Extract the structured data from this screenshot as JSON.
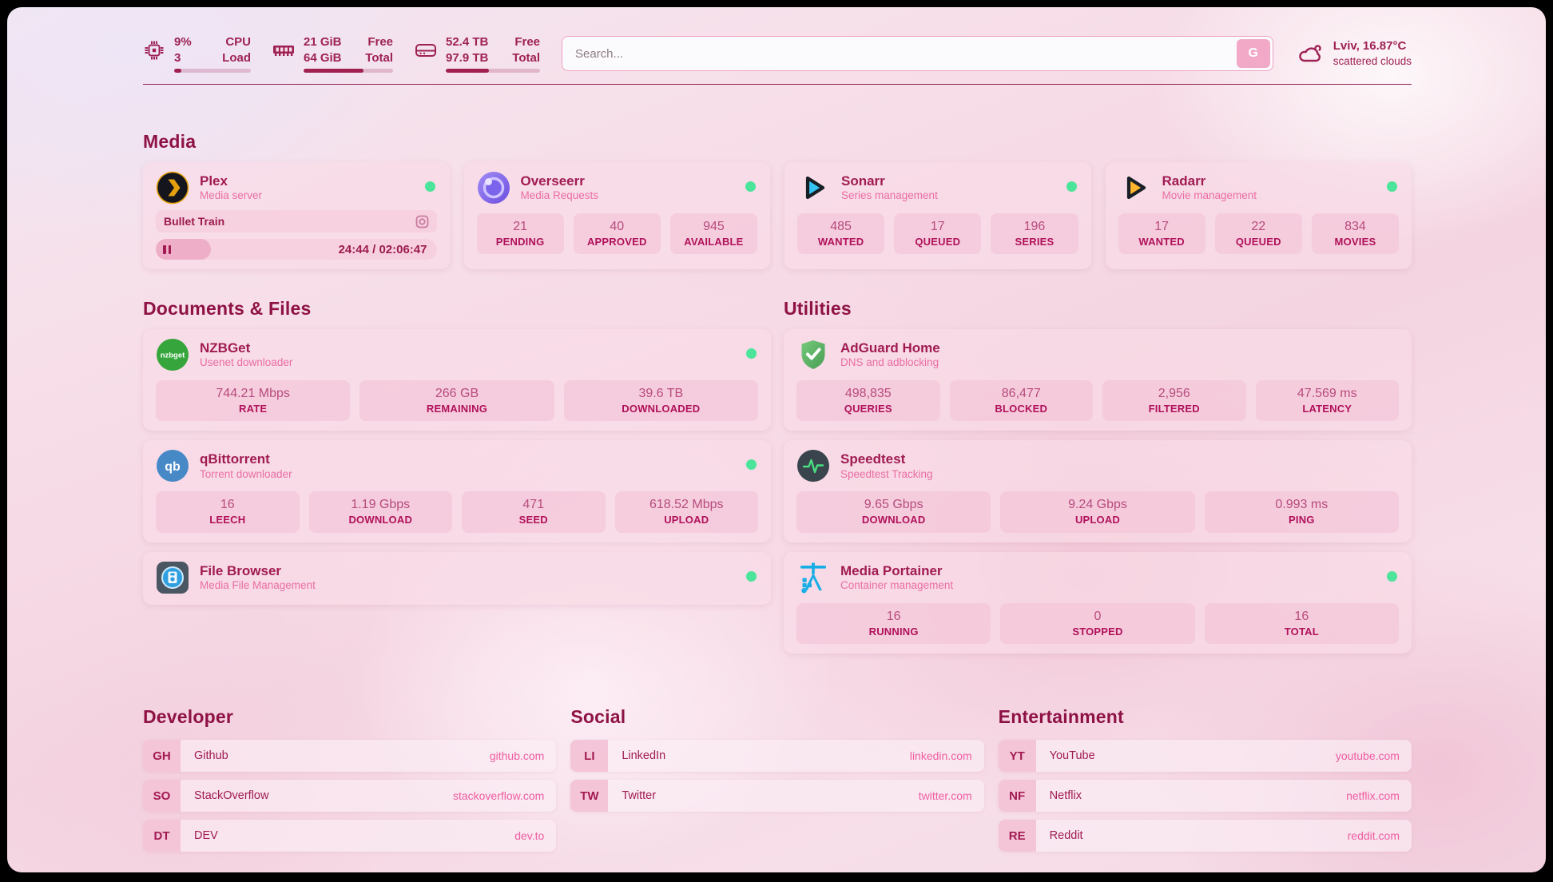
{
  "header": {
    "cpu": {
      "value": "9%",
      "secondary": "3",
      "label_top": "CPU",
      "label_bottom": "Load",
      "percent": 9
    },
    "memory": {
      "value": "21 GiB",
      "secondary": "64 GiB",
      "label_top": "Free",
      "label_bottom": "Total",
      "percent": 67
    },
    "disk": {
      "value": "52.4 TB",
      "secondary": "97.9 TB",
      "label_top": "Free",
      "label_bottom": "Total",
      "percent": 46
    },
    "search": {
      "placeholder": "Search...",
      "button_label": "G"
    },
    "weather": {
      "location": "Lviv, 16.87°C",
      "condition": "scattered clouds"
    }
  },
  "sections": {
    "media": {
      "heading": "Media",
      "plex": {
        "title": "Plex",
        "subtitle": "Media server",
        "now_playing": "Bullet Train",
        "progress_time": "24:44 / 02:06:47",
        "progress_percent": 19.5
      },
      "overseerr": {
        "title": "Overseerr",
        "subtitle": "Media Requests",
        "stats": [
          {
            "value": "21",
            "label": "PENDING"
          },
          {
            "value": "40",
            "label": "APPROVED"
          },
          {
            "value": "945",
            "label": "AVAILABLE"
          }
        ]
      },
      "sonarr": {
        "title": "Sonarr",
        "subtitle": "Series management",
        "stats": [
          {
            "value": "485",
            "label": "WANTED"
          },
          {
            "value": "17",
            "label": "QUEUED"
          },
          {
            "value": "196",
            "label": "SERIES"
          }
        ]
      },
      "radarr": {
        "title": "Radarr",
        "subtitle": "Movie management",
        "stats": [
          {
            "value": "17",
            "label": "WANTED"
          },
          {
            "value": "22",
            "label": "QUEUED"
          },
          {
            "value": "834",
            "label": "MOVIES"
          }
        ]
      }
    },
    "documents": {
      "heading": "Documents & Files",
      "nzbget": {
        "title": "NZBGet",
        "subtitle": "Usenet downloader",
        "stats": [
          {
            "value": "744.21 Mbps",
            "label": "RATE"
          },
          {
            "value": "266 GB",
            "label": "REMAINING"
          },
          {
            "value": "39.6 TB",
            "label": "DOWNLOADED"
          }
        ]
      },
      "qbittorrent": {
        "title": "qBittorrent",
        "subtitle": "Torrent downloader",
        "stats": [
          {
            "value": "16",
            "label": "LEECH"
          },
          {
            "value": "1.19 Gbps",
            "label": "DOWNLOAD"
          },
          {
            "value": "471",
            "label": "SEED"
          },
          {
            "value": "618.52 Mbps",
            "label": "UPLOAD"
          }
        ]
      },
      "filebrowser": {
        "title": "File Browser",
        "subtitle": "Media File Management"
      }
    },
    "utilities": {
      "heading": "Utilities",
      "adguard": {
        "title": "AdGuard Home",
        "subtitle": "DNS and adblocking",
        "stats": [
          {
            "value": "498,835",
            "label": "QUERIES"
          },
          {
            "value": "86,477",
            "label": "BLOCKED"
          },
          {
            "value": "2,956",
            "label": "FILTERED"
          },
          {
            "value": "47.569 ms",
            "label": "LATENCY"
          }
        ]
      },
      "speedtest": {
        "title": "Speedtest",
        "subtitle": "Speedtest Tracking",
        "stats": [
          {
            "value": "9.65 Gbps",
            "label": "DOWNLOAD"
          },
          {
            "value": "9.24 Gbps",
            "label": "UPLOAD"
          },
          {
            "value": "0.993 ms",
            "label": "PING"
          }
        ]
      },
      "portainer": {
        "title": "Media Portainer",
        "subtitle": "Container management",
        "stats": [
          {
            "value": "16",
            "label": "RUNNING"
          },
          {
            "value": "0",
            "label": "STOPPED"
          },
          {
            "value": "16",
            "label": "TOTAL"
          }
        ]
      }
    },
    "developer": {
      "heading": "Developer",
      "items": [
        {
          "badge": "GH",
          "name": "Github",
          "url": "github.com"
        },
        {
          "badge": "SO",
          "name": "StackOverflow",
          "url": "stackoverflow.com"
        },
        {
          "badge": "DT",
          "name": "DEV",
          "url": "dev.to"
        }
      ]
    },
    "social": {
      "heading": "Social",
      "items": [
        {
          "badge": "LI",
          "name": "LinkedIn",
          "url": "linkedin.com"
        },
        {
          "badge": "TW",
          "name": "Twitter",
          "url": "twitter.com"
        }
      ]
    },
    "entertainment": {
      "heading": "Entertainment",
      "items": [
        {
          "badge": "YT",
          "name": "YouTube",
          "url": "youtube.com"
        },
        {
          "badge": "NF",
          "name": "Netflix",
          "url": "netflix.com"
        },
        {
          "badge": "RE",
          "name": "Reddit",
          "url": "reddit.com"
        }
      ]
    }
  },
  "colors": {
    "accent": "#a21a52",
    "online": "#4be49a"
  }
}
